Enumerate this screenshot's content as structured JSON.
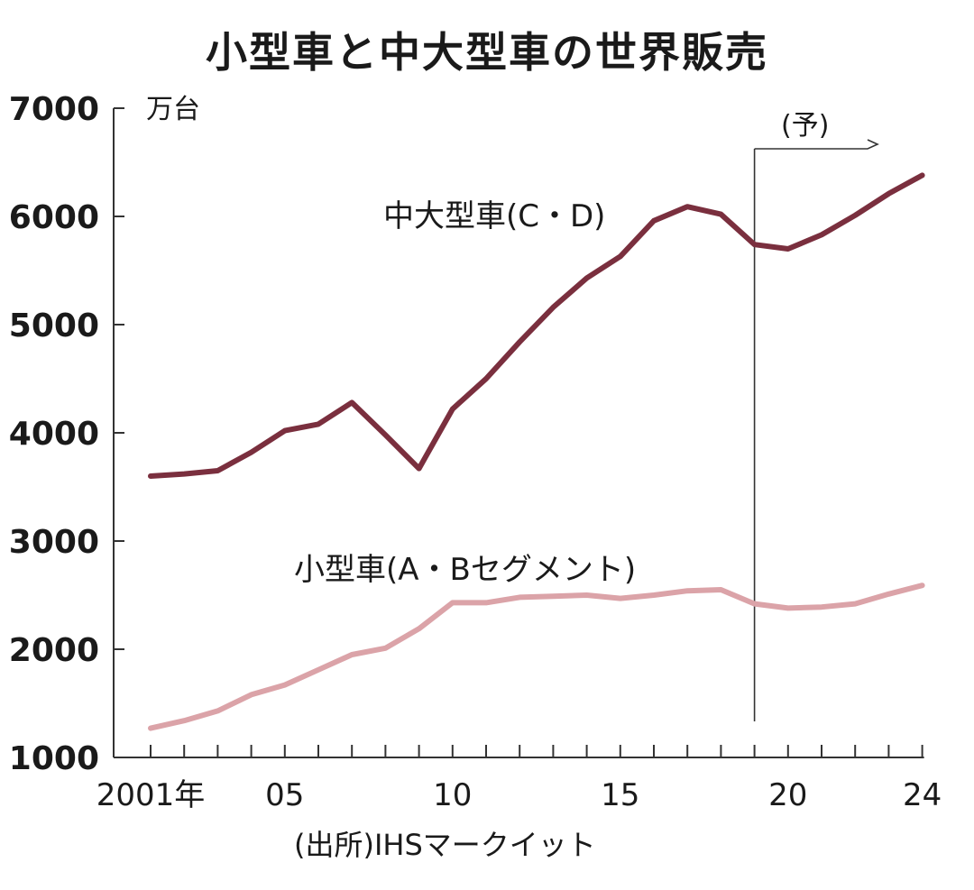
{
  "chart_data": {
    "type": "line",
    "title": "小型車と中大型車の世界販売",
    "unit": "万台",
    "source": "(出所)IHSマークイット",
    "forecast_label": "(予)",
    "forecast_from_year": 2019,
    "x": [
      2001,
      2002,
      2003,
      2004,
      2005,
      2006,
      2007,
      2008,
      2009,
      2010,
      2011,
      2012,
      2013,
      2014,
      2015,
      2016,
      2017,
      2018,
      2019,
      2020,
      2021,
      2022,
      2023,
      2024
    ],
    "x_tick_labels": [
      {
        "year": 2001,
        "label": "2001年"
      },
      {
        "year": 2005,
        "label": "05"
      },
      {
        "year": 2010,
        "label": "10"
      },
      {
        "year": 2015,
        "label": "15"
      },
      {
        "year": 2020,
        "label": "20"
      },
      {
        "year": 2024,
        "label": "24"
      }
    ],
    "ylim": [
      1000,
      7000
    ],
    "y_ticks": [
      1000,
      2000,
      3000,
      4000,
      5000,
      6000,
      7000
    ],
    "series": [
      {
        "name": "中大型車(C・D)",
        "color": "#7a2f3e",
        "values": [
          3600,
          3620,
          3650,
          3820,
          4020,
          4080,
          4280,
          3980,
          3670,
          4220,
          4500,
          4840,
          5160,
          5430,
          5630,
          5960,
          6090,
          6020,
          5740,
          5700,
          5830,
          6010,
          6210,
          6380
        ]
      },
      {
        "name": "小型車(A・Bセグメント)",
        "color": "#dba3a8",
        "values": [
          1270,
          1340,
          1430,
          1580,
          1670,
          1810,
          1950,
          2010,
          2190,
          2430,
          2430,
          2480,
          2490,
          2500,
          2470,
          2500,
          2540,
          2550,
          2420,
          2380,
          2390,
          2420,
          2510,
          2590
        ]
      }
    ]
  }
}
